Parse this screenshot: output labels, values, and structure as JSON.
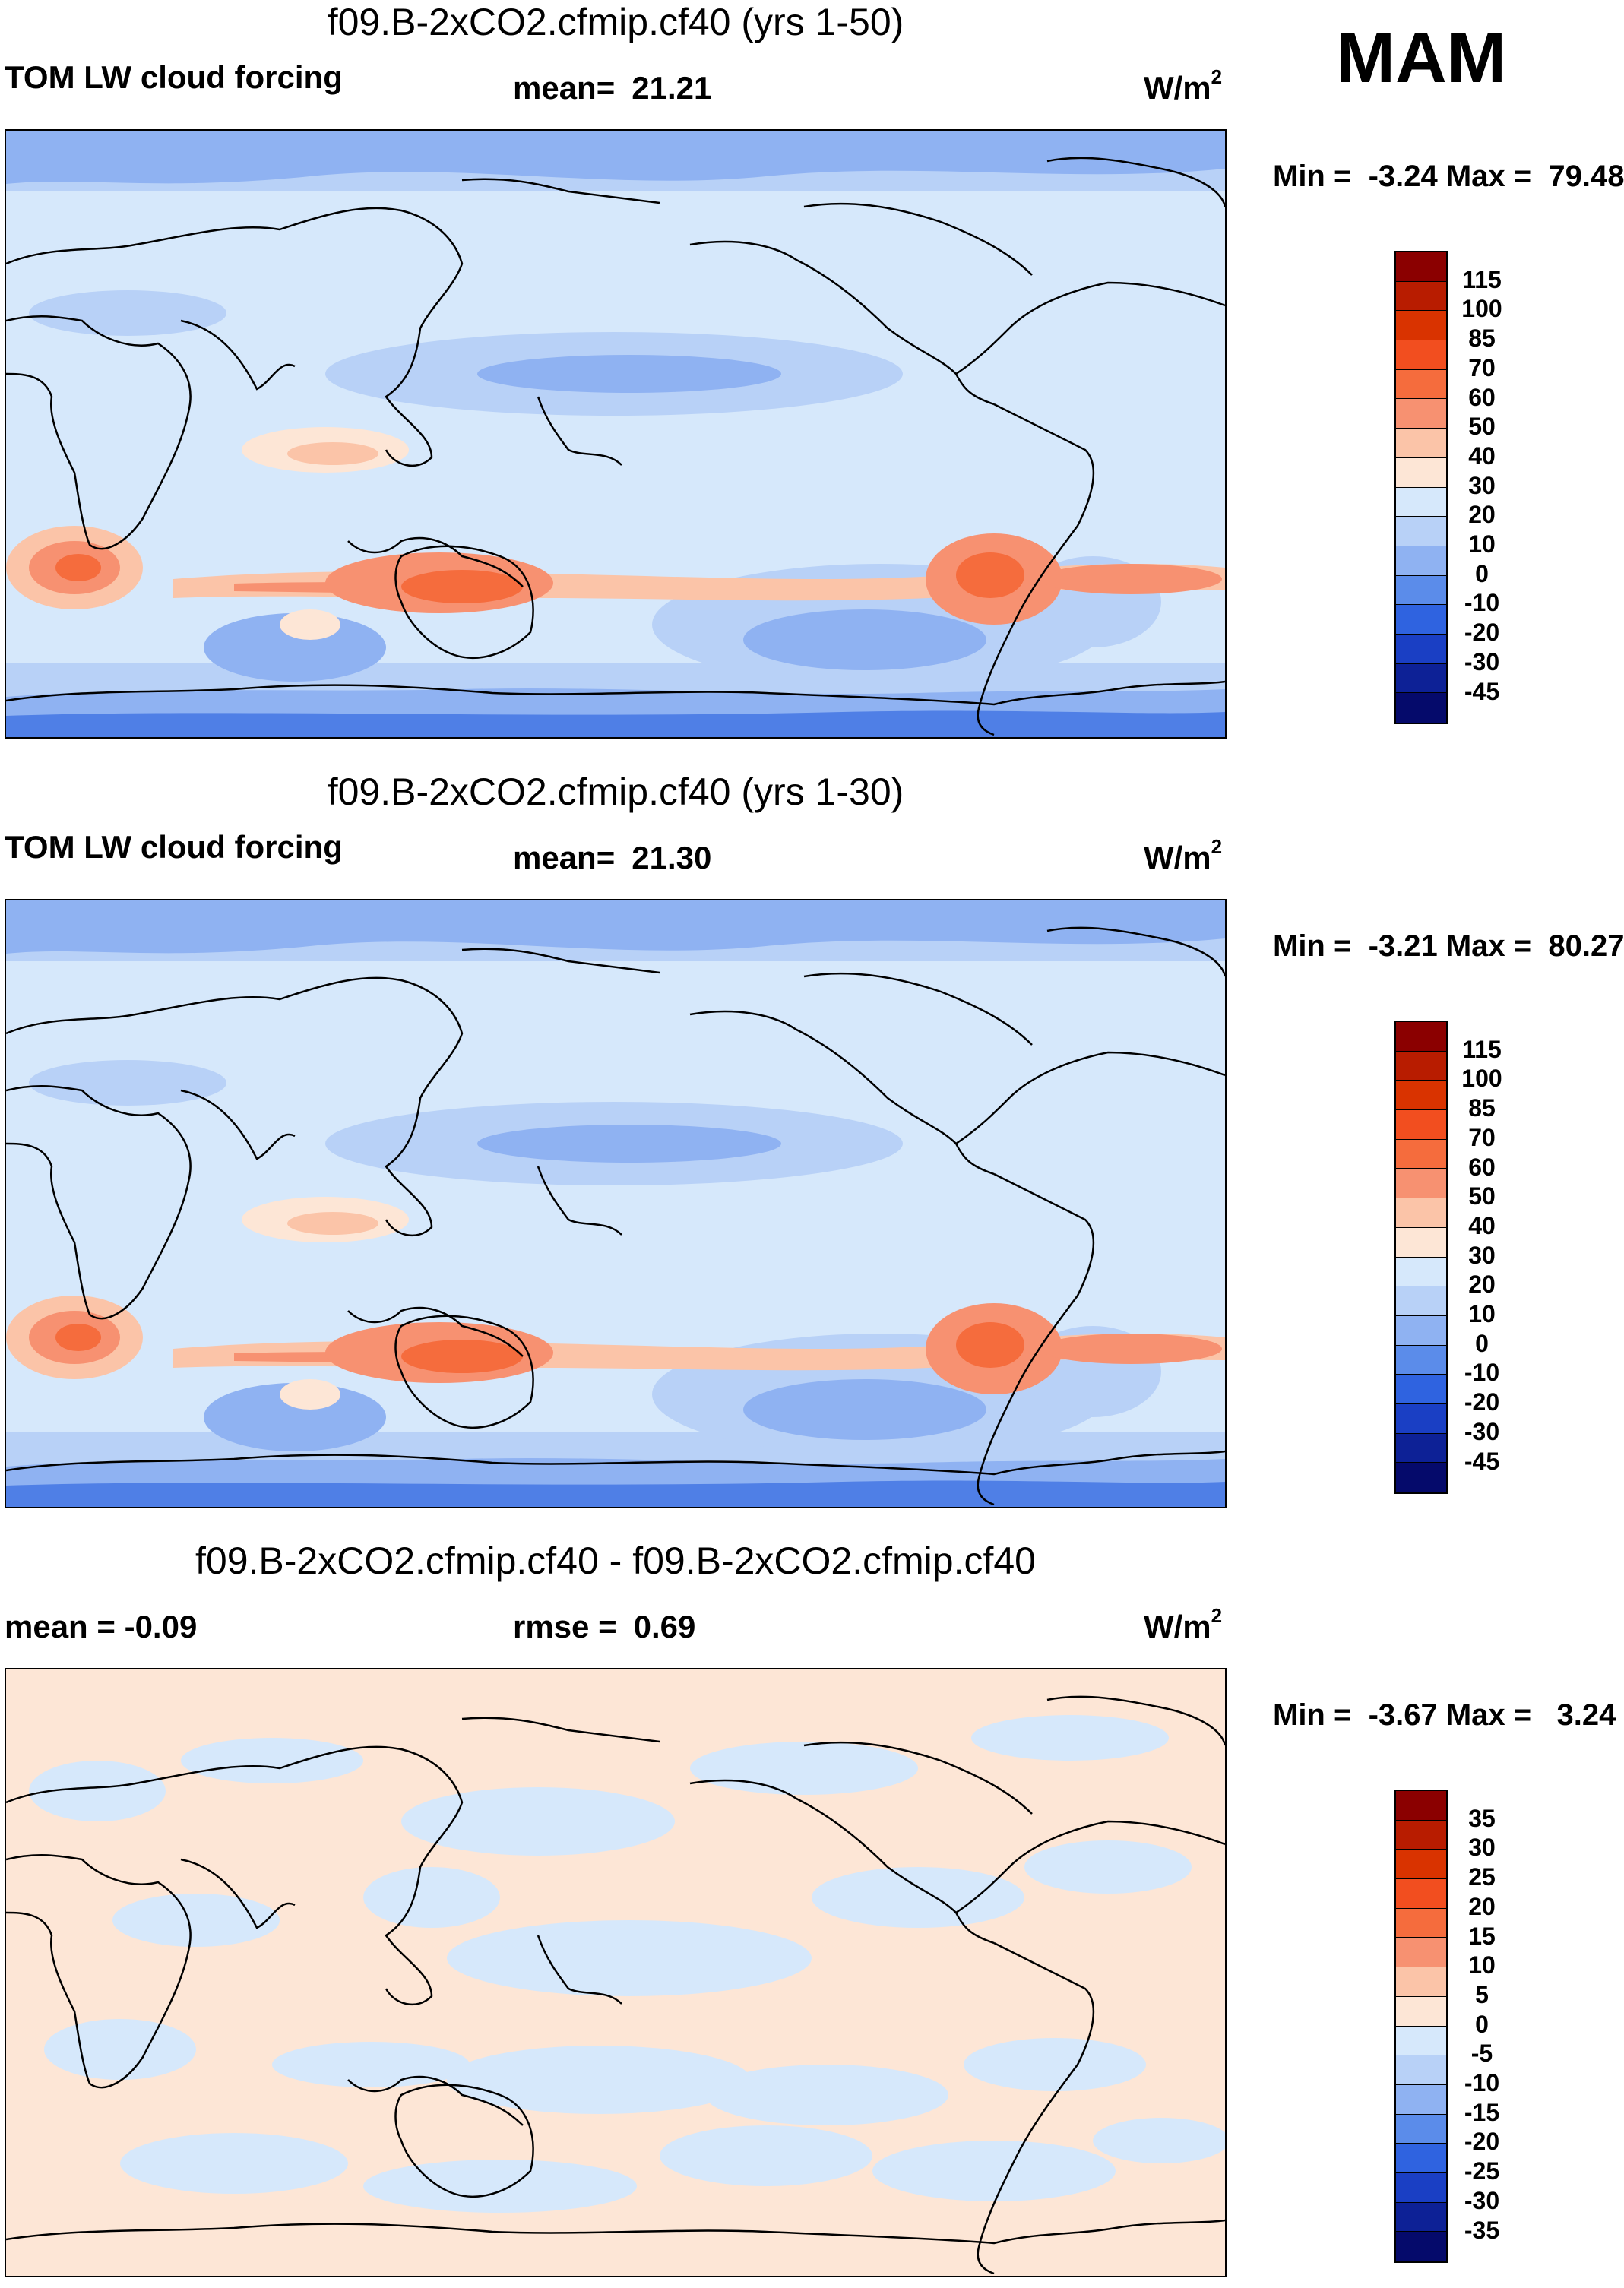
{
  "season": "MAM",
  "panels": [
    {
      "title": "f09.B-2xCO2.cfmip.cf40 (yrs 1-50)",
      "left_label": "TOM LW cloud forcing",
      "center_key": "mean=",
      "center_value": "21.21",
      "units_base": "W/m",
      "units_exp": "2",
      "minmax": "Min =  -3.24 Max =  79.48",
      "colorbar_labels": [
        "115",
        "100",
        "85",
        "70",
        "60",
        "50",
        "40",
        "30",
        "20",
        "10",
        "0",
        "-10",
        "-20",
        "-30",
        "-45"
      ],
      "colorbar_colors": [
        "#8b0000",
        "#b81c00",
        "#d93300",
        "#f24e1f",
        "#f56c3d",
        "#f79171",
        "#fbc4a8",
        "#fde6d6",
        "#d6e8fb",
        "#b8d1f7",
        "#8fb2f2",
        "#5b8cea",
        "#2f63e0",
        "#1a3fc4",
        "#0d2196",
        "#050a6b"
      ]
    },
    {
      "title": "f09.B-2xCO2.cfmip.cf40 (yrs 1-30)",
      "left_label": "TOM LW cloud forcing",
      "center_key": "mean=",
      "center_value": "21.30",
      "units_base": "W/m",
      "units_exp": "2",
      "minmax": "Min =  -3.21 Max =  80.27",
      "colorbar_labels": [
        "115",
        "100",
        "85",
        "70",
        "60",
        "50",
        "40",
        "30",
        "20",
        "10",
        "0",
        "-10",
        "-20",
        "-30",
        "-45"
      ],
      "colorbar_colors": [
        "#8b0000",
        "#b81c00",
        "#d93300",
        "#f24e1f",
        "#f56c3d",
        "#f79171",
        "#fbc4a8",
        "#fde6d6",
        "#d6e8fb",
        "#b8d1f7",
        "#8fb2f2",
        "#5b8cea",
        "#2f63e0",
        "#1a3fc4",
        "#0d2196",
        "#050a6b"
      ]
    },
    {
      "title": "f09.B-2xCO2.cfmip.cf40 - f09.B-2xCO2.cfmip.cf40",
      "left_label": "mean =  -0.09",
      "center_key": "rmse =",
      "center_value": "0.69",
      "units_base": "W/m",
      "units_exp": "2",
      "minmax": "Min =  -3.67 Max =   3.24",
      "colorbar_labels": [
        "35",
        "30",
        "25",
        "20",
        "15",
        "10",
        "5",
        "0",
        "-5",
        "-10",
        "-15",
        "-20",
        "-25",
        "-30",
        "-35"
      ],
      "colorbar_colors": [
        "#8b0000",
        "#b81c00",
        "#d93300",
        "#f24e1f",
        "#f56c3d",
        "#f79171",
        "#fbc4a8",
        "#fde6d6",
        "#d6e8fb",
        "#b8d1f7",
        "#8fb2f2",
        "#5b8cea",
        "#2f63e0",
        "#1a3fc4",
        "#0d2196",
        "#050a6b"
      ]
    }
  ],
  "map_colors": {
    "deep_blue": "#4f7fe6",
    "mid_blue": "#8fb2f2",
    "light_blue": "#b8d1f7",
    "pale_blue": "#d6e8fb",
    "pale_orange": "#fde6d6",
    "light_orange": "#fbc4a8",
    "orange": "#f79171",
    "red_orange": "#f56c3d",
    "red": "#e0481a"
  }
}
